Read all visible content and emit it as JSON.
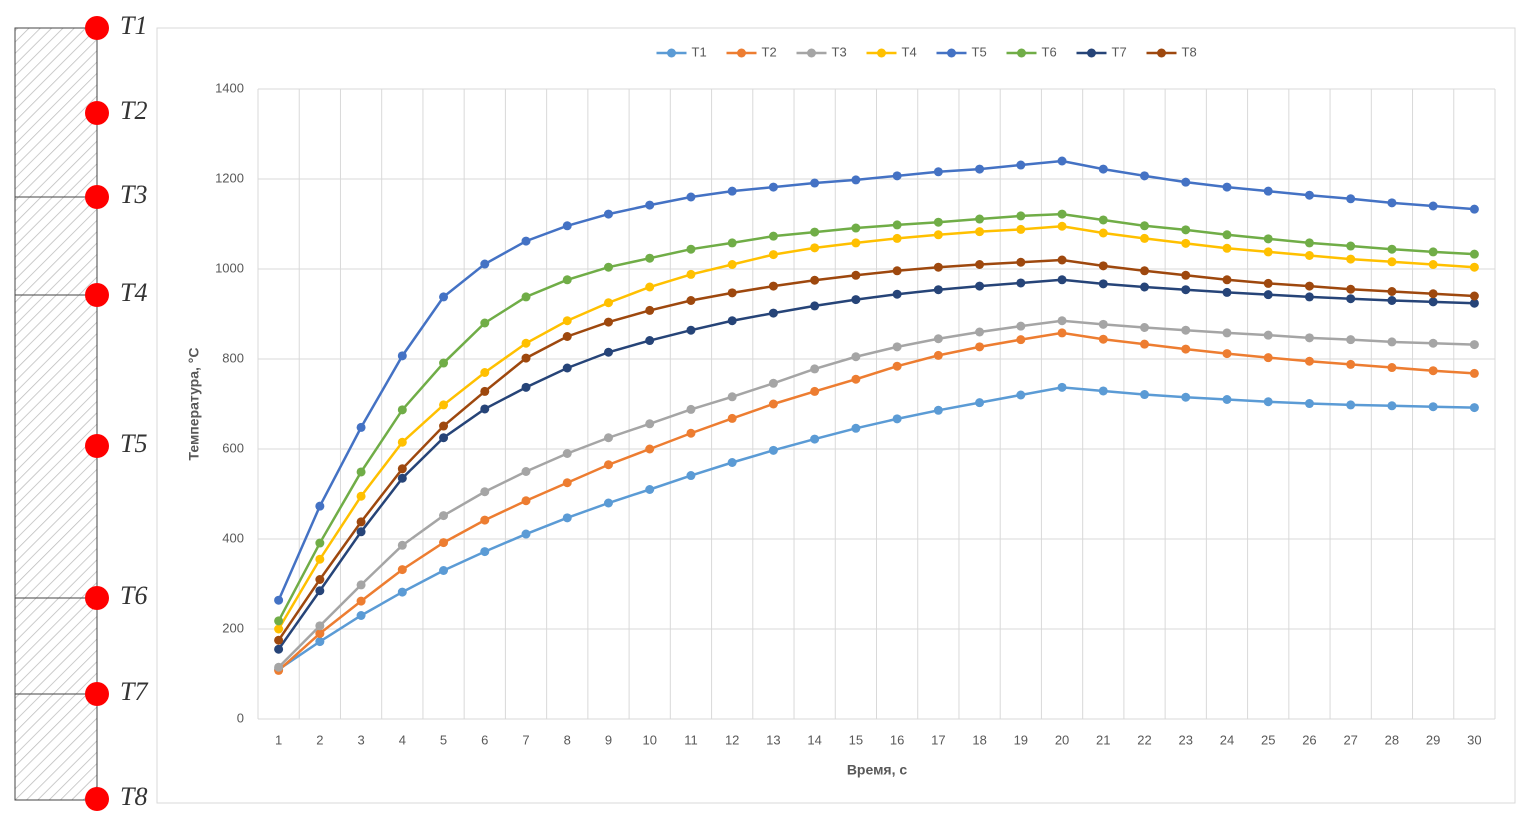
{
  "sensor_labels": [
    "T1",
    "T2",
    "T3",
    "T4",
    "T5",
    "T6",
    "T7",
    "T8"
  ],
  "chart_data": {
    "type": "line",
    "y_label": "Температура, °С",
    "x_label": "Время, с",
    "categories": [
      1,
      2,
      3,
      4,
      5,
      6,
      7,
      8,
      9,
      10,
      11,
      12,
      13,
      14,
      15,
      16,
      17,
      18,
      19,
      20,
      21,
      22,
      23,
      24,
      25,
      26,
      27,
      28,
      29,
      30
    ],
    "ylim": [
      0,
      1400
    ],
    "yticks": [
      0,
      200,
      400,
      600,
      800,
      1000,
      1200,
      1400
    ],
    "grid": true,
    "legend": "top",
    "series": [
      {
        "name": "T1",
        "color": "#5b9bd5",
        "values": [
          110,
          172,
          230,
          282,
          330,
          372,
          411,
          447,
          480,
          510,
          541,
          570,
          597,
          622,
          646,
          667,
          686,
          703,
          720,
          737,
          729,
          721,
          715,
          710,
          705,
          701,
          698,
          696,
          694,
          692
        ]
      },
      {
        "name": "T2",
        "color": "#ed7d31",
        "values": [
          108,
          190,
          262,
          332,
          392,
          442,
          485,
          525,
          565,
          600,
          635,
          668,
          700,
          728,
          755,
          784,
          808,
          827,
          843,
          858,
          844,
          833,
          822,
          812,
          803,
          795,
          788,
          781,
          774,
          768
        ]
      },
      {
        "name": "T3",
        "color": "#a5a5a5",
        "values": [
          115,
          207,
          298,
          386,
          452,
          505,
          550,
          590,
          625,
          656,
          688,
          716,
          746,
          778,
          805,
          827,
          845,
          860,
          873,
          885,
          877,
          870,
          864,
          858,
          853,
          847,
          843,
          838,
          835,
          832
        ]
      },
      {
        "name": "T4",
        "color": "#ffc000",
        "values": [
          200,
          355,
          495,
          615,
          698,
          770,
          835,
          885,
          925,
          960,
          988,
          1010,
          1032,
          1047,
          1058,
          1068,
          1076,
          1083,
          1088,
          1095,
          1080,
          1068,
          1057,
          1046,
          1038,
          1030,
          1022,
          1016,
          1010,
          1004
        ]
      },
      {
        "name": "T5",
        "color": "#4472c4",
        "values": [
          264,
          473,
          648,
          807,
          938,
          1011,
          1062,
          1096,
          1122,
          1142,
          1160,
          1173,
          1182,
          1191,
          1198,
          1207,
          1216,
          1222,
          1231,
          1240,
          1222,
          1207,
          1193,
          1182,
          1173,
          1164,
          1156,
          1147,
          1140,
          1133
        ]
      },
      {
        "name": "T6",
        "color": "#70ad47",
        "values": [
          218,
          391,
          549,
          687,
          791,
          880,
          938,
          976,
          1004,
          1024,
          1044,
          1058,
          1073,
          1082,
          1091,
          1098,
          1104,
          1111,
          1118,
          1122,
          1109,
          1096,
          1087,
          1076,
          1067,
          1058,
          1051,
          1044,
          1038,
          1033
        ]
      },
      {
        "name": "T7",
        "color": "#264478",
        "values": [
          155,
          285,
          416,
          535,
          625,
          689,
          737,
          780,
          815,
          841,
          864,
          885,
          902,
          918,
          932,
          944,
          954,
          962,
          969,
          976,
          967,
          960,
          954,
          948,
          943,
          938,
          934,
          930,
          927,
          924
        ]
      },
      {
        "name": "T8",
        "color": "#9e480e",
        "values": [
          175,
          310,
          438,
          556,
          651,
          728,
          802,
          850,
          882,
          908,
          930,
          947,
          962,
          975,
          986,
          996,
          1004,
          1010,
          1015,
          1020,
          1007,
          996,
          986,
          976,
          968,
          962,
          955,
          950,
          945,
          940
        ]
      }
    ]
  }
}
